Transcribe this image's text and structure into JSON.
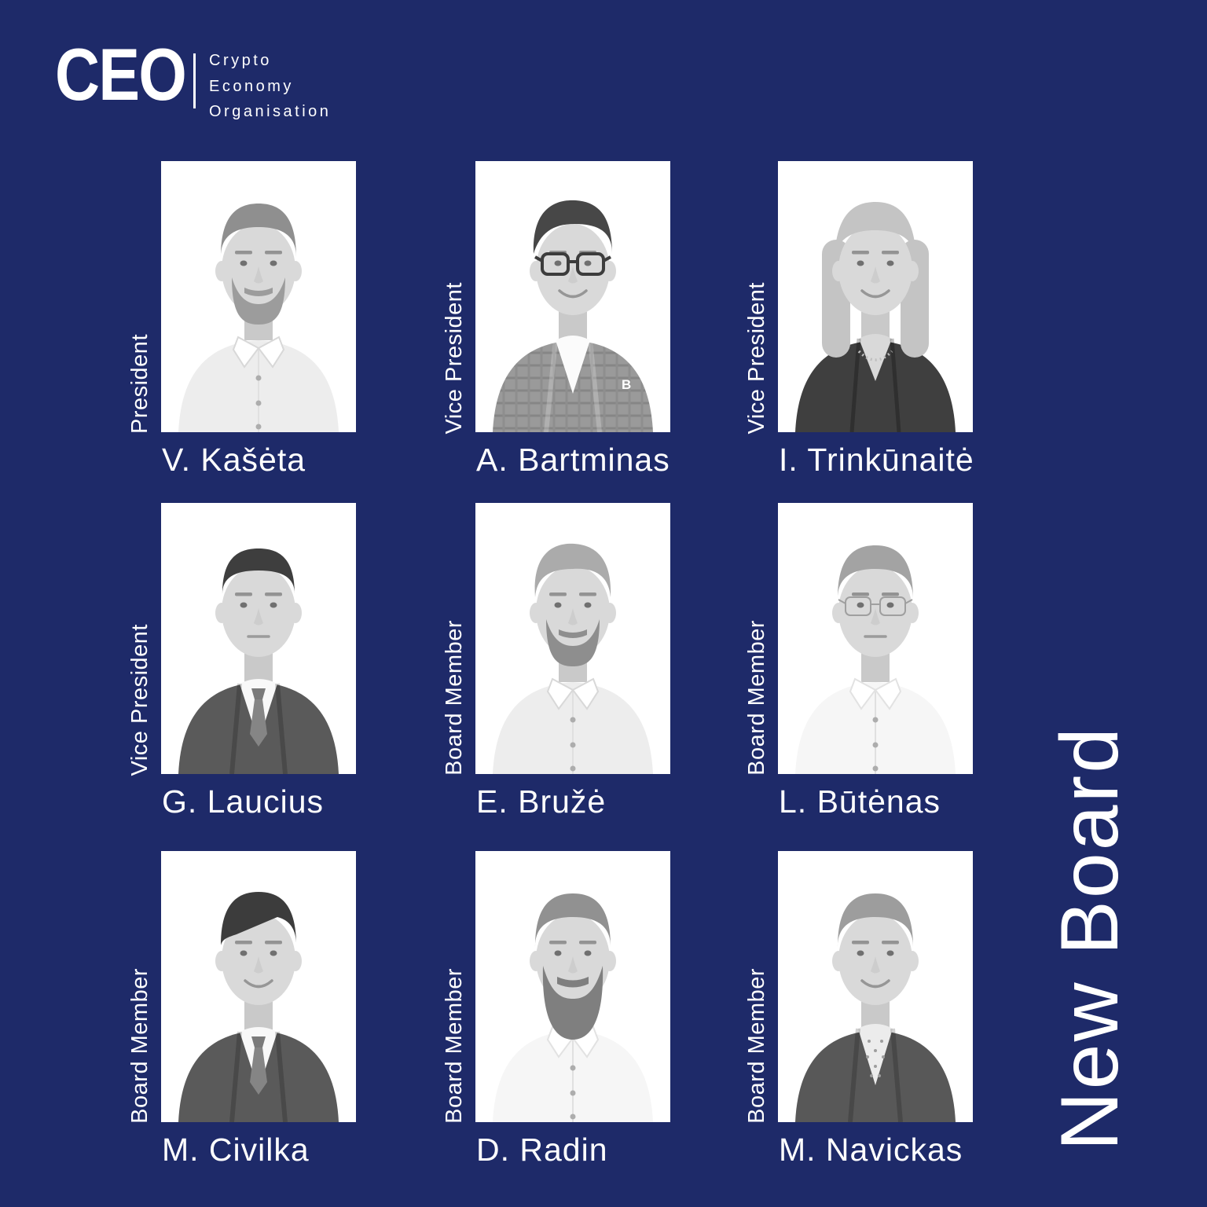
{
  "page": {
    "background_color": "#1e2a69",
    "text_color": "#ffffff",
    "photo_background_color": "#ffffff"
  },
  "logo": {
    "acronym": "CEO",
    "lines": [
      "Crypto",
      "Economy",
      "Organisation"
    ]
  },
  "headline": {
    "vertical_text": "New Board"
  },
  "board": {
    "members": [
      {
        "role": "President",
        "name": "V. Kašėta",
        "photo": {
          "style": "grayscale-headshot",
          "hair": "short",
          "hair_color": "#8f8f8f",
          "beard": "full",
          "beard_color": "#9c9c9c",
          "glasses": "none",
          "outfit": "shirt",
          "smile": true
        }
      },
      {
        "role": "Vice President",
        "name": "A. Bartminas",
        "photo": {
          "style": "grayscale-headshot",
          "hair": "swept",
          "hair_color": "#474747",
          "beard": "none",
          "glasses": "framed",
          "outfit": "plaid",
          "pin": "B",
          "smile": true
        }
      },
      {
        "role": "Vice President",
        "name": "I. Trinkūnaitė",
        "photo": {
          "style": "grayscale-headshot",
          "hair": "long",
          "hair_color": "#c4c4c4",
          "beard": "none",
          "glasses": "none",
          "outfit": "blazer",
          "necklace": true,
          "smile": true
        }
      },
      {
        "role": "Vice President",
        "name": "G. Laucius",
        "photo": {
          "style": "grayscale-headshot",
          "hair": "slicked",
          "hair_color": "#3e3e3e",
          "beard": "none",
          "glasses": "none",
          "outfit": "suit",
          "smile": false
        }
      },
      {
        "role": "Board Member",
        "name": "E. Bružė",
        "photo": {
          "style": "grayscale-headshot",
          "hair": "tousled",
          "hair_color": "#ababab",
          "beard": "full",
          "beard_color": "#8e8e8e",
          "glasses": "none",
          "outfit": "shirt",
          "smile": true
        }
      },
      {
        "role": "Board Member",
        "name": "L. Būtėnas",
        "photo": {
          "style": "grayscale-headshot",
          "hair": "short",
          "hair_color": "#a3a3a3",
          "beard": "none",
          "glasses": "rimless",
          "outfit": "shirt-white",
          "smile": false
        }
      },
      {
        "role": "Board Member",
        "name": "M. Civilka",
        "photo": {
          "style": "grayscale-headshot",
          "hair": "fringe",
          "hair_color": "#3c3c3c",
          "beard": "none",
          "glasses": "none",
          "outfit": "suit",
          "smile": true
        }
      },
      {
        "role": "Board Member",
        "name": "D. Radin",
        "photo": {
          "style": "grayscale-headshot",
          "hair": "short",
          "hair_color": "#919191",
          "beard": "big",
          "beard_color": "#7f7f7f",
          "glasses": "none",
          "outfit": "shirt-white",
          "smile": false
        }
      },
      {
        "role": "Board Member",
        "name": "M. Navickas",
        "photo": {
          "style": "grayscale-headshot",
          "hair": "short",
          "hair_color": "#9d9d9d",
          "beard": "none",
          "glasses": "none",
          "outfit": "jacket",
          "patterned_shirt": true,
          "smile": true
        }
      }
    ]
  }
}
